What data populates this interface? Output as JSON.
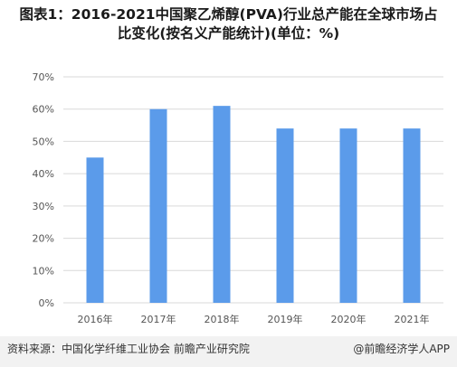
{
  "title": {
    "line1": "图表1：2016-2021中国聚乙烯醇(PVA)行业总产能在全球市场占",
    "line2": "比变化(按名义产能统计)(单位：%)"
  },
  "footer": {
    "source": "资料来源：中国化学纤维工业协会 前瞻产业研究院",
    "credit": "@前瞻经济学人APP"
  },
  "chart_data": {
    "type": "bar",
    "categories": [
      "2016年",
      "2017年",
      "2018年",
      "2019年",
      "2020年",
      "2021年"
    ],
    "values": [
      45,
      60,
      61,
      54,
      54,
      54
    ],
    "ylim": [
      0,
      70
    ],
    "yticks": [
      "0%",
      "10%",
      "20%",
      "30%",
      "40%",
      "50%",
      "60%",
      "70%"
    ],
    "grid": true,
    "bar_color": "#5b9bea",
    "grid_color": "#d9d9d9"
  }
}
